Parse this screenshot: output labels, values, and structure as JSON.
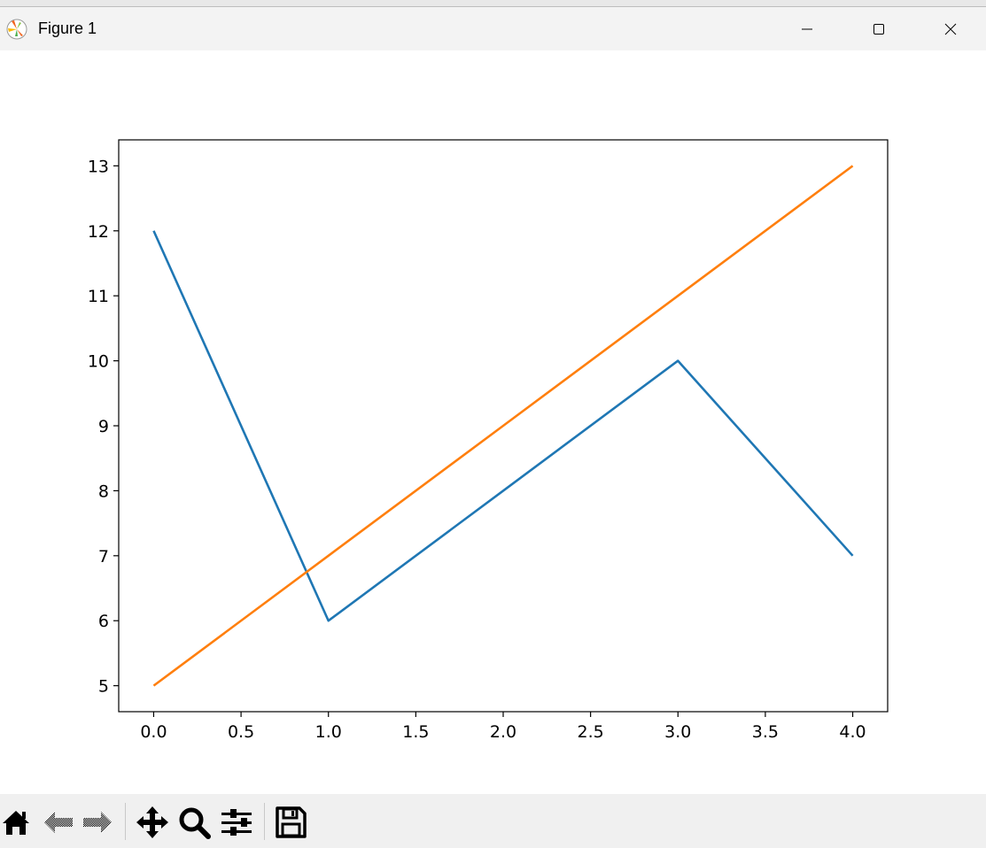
{
  "window": {
    "title": "Figure 1",
    "app_icon": "matplotlib-logo-icon",
    "controls": [
      "minimize-icon",
      "maximize-icon",
      "close-icon"
    ]
  },
  "toolbar": {
    "buttons": [
      "home-icon",
      "back-icon",
      "forward-icon",
      "pan-icon",
      "zoom-icon",
      "configure-subplots-icon",
      "save-icon"
    ]
  },
  "chart_data": {
    "type": "line",
    "title": "",
    "xlabel": "",
    "ylabel": "",
    "xlim": [
      -0.2,
      4.2
    ],
    "ylim": [
      4.6,
      13.4
    ],
    "xticks": [
      0.0,
      0.5,
      1.0,
      1.5,
      2.0,
      2.5,
      3.0,
      3.5,
      4.0
    ],
    "xtick_labels": [
      "0.0",
      "0.5",
      "1.0",
      "1.5",
      "2.0",
      "2.5",
      "3.0",
      "3.5",
      "4.0"
    ],
    "yticks": [
      5,
      6,
      7,
      8,
      9,
      10,
      11,
      12,
      13
    ],
    "ytick_labels": [
      "5",
      "6",
      "7",
      "8",
      "9",
      "10",
      "11",
      "12",
      "13"
    ],
    "grid": false,
    "series": [
      {
        "x": [
          0,
          1,
          2,
          3,
          4
        ],
        "values": [
          12,
          6,
          8,
          10,
          7
        ],
        "color": "#1f77b4"
      },
      {
        "x": [
          0,
          1,
          2,
          3,
          4
        ],
        "values": [
          5,
          7,
          9,
          11,
          13
        ],
        "color": "#ff7f0e"
      }
    ]
  }
}
